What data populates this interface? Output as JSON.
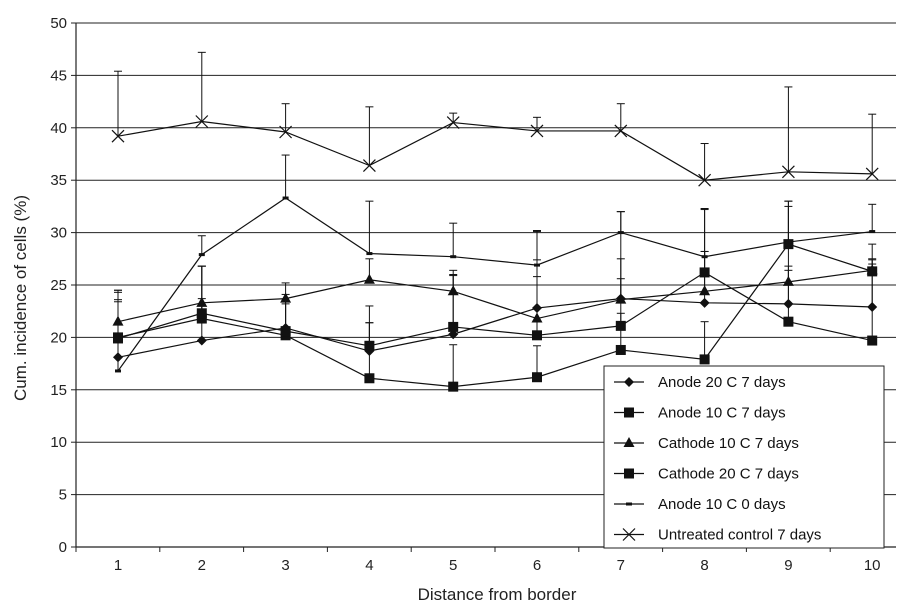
{
  "chart_data": {
    "type": "line",
    "title": "",
    "xlabel": "Distance from border",
    "ylabel": "Cum. incidence of cells (%)",
    "x": [
      1,
      2,
      3,
      4,
      5,
      6,
      7,
      8,
      9,
      10
    ],
    "x_tick_labels": [
      "1",
      "2",
      "3",
      "4",
      "5",
      "6",
      "7",
      "8",
      "9",
      "10"
    ],
    "ylim": [
      0,
      50
    ],
    "y_ticks": [
      0,
      5,
      10,
      15,
      20,
      25,
      30,
      35,
      40,
      45,
      50
    ],
    "y_tick_labels": [
      "0",
      "5",
      "10",
      "15",
      "20",
      "25",
      "30",
      "35",
      "40",
      "45",
      "50"
    ],
    "grid": "horizontal",
    "legend_position": "bottom-right",
    "series": [
      {
        "name": "Anode 20 C 7 days",
        "marker": "diamond",
        "values": [
          18.1,
          19.7,
          20.9,
          18.7,
          20.3,
          22.8,
          23.7,
          23.3,
          23.2,
          22.9
        ],
        "error_plus": [
          5.5,
          4.0,
          2.5,
          2.7,
          6.1,
          7.3,
          8.3,
          8.9,
          3.6,
          4.5
        ]
      },
      {
        "name": "Anode 10 C 7 days",
        "marker": "square",
        "values": [
          20.0,
          21.8,
          20.2,
          16.1,
          15.3,
          16.2,
          18.8,
          17.9,
          28.9,
          26.3
        ],
        "error_plus": [
          4.5,
          5.0,
          3.0,
          5.3,
          4.0,
          3.0,
          3.5,
          3.6,
          4.1,
          2.6
        ]
      },
      {
        "name": "Cathode 10 C 7 days",
        "marker": "triangle",
        "values": [
          21.5,
          23.3,
          23.7,
          25.5,
          24.4,
          21.8,
          23.6,
          24.4,
          25.3,
          26.4
        ],
        "error_plus": [
          3.0,
          3.5,
          1.5,
          2.0,
          1.5,
          5.6,
          2.0,
          3.8,
          1.1,
          0.6
        ]
      },
      {
        "name": "Cathode 20 C 7 days",
        "marker": "square",
        "values": [
          19.9,
          22.3,
          20.6,
          19.2,
          21.0,
          20.2,
          21.1,
          26.2,
          21.5,
          19.7
        ],
        "error_plus": [
          3.5,
          4.5,
          3.5,
          3.8,
          5.0,
          5.6,
          6.4,
          2.0,
          11.0,
          7.8
        ]
      },
      {
        "name": "Anode 10 C 0 days",
        "marker": "dash",
        "values": [
          16.8,
          27.9,
          33.3,
          28.0,
          27.7,
          26.9,
          30.0,
          27.7,
          29.1,
          30.1
        ],
        "error_plus": [
          7.5,
          1.8,
          4.1,
          5.0,
          3.2,
          3.3,
          2.0,
          4.6,
          3.9,
          2.6
        ]
      },
      {
        "name": "Untreated control 7 days",
        "marker": "x",
        "values": [
          39.2,
          40.6,
          39.6,
          36.4,
          40.5,
          39.7,
          39.7,
          35.0,
          35.8,
          35.6
        ],
        "error_plus": [
          6.2,
          6.6,
          2.7,
          5.6,
          0.9,
          1.3,
          2.6,
          3.5,
          8.1,
          5.7
        ]
      }
    ]
  }
}
